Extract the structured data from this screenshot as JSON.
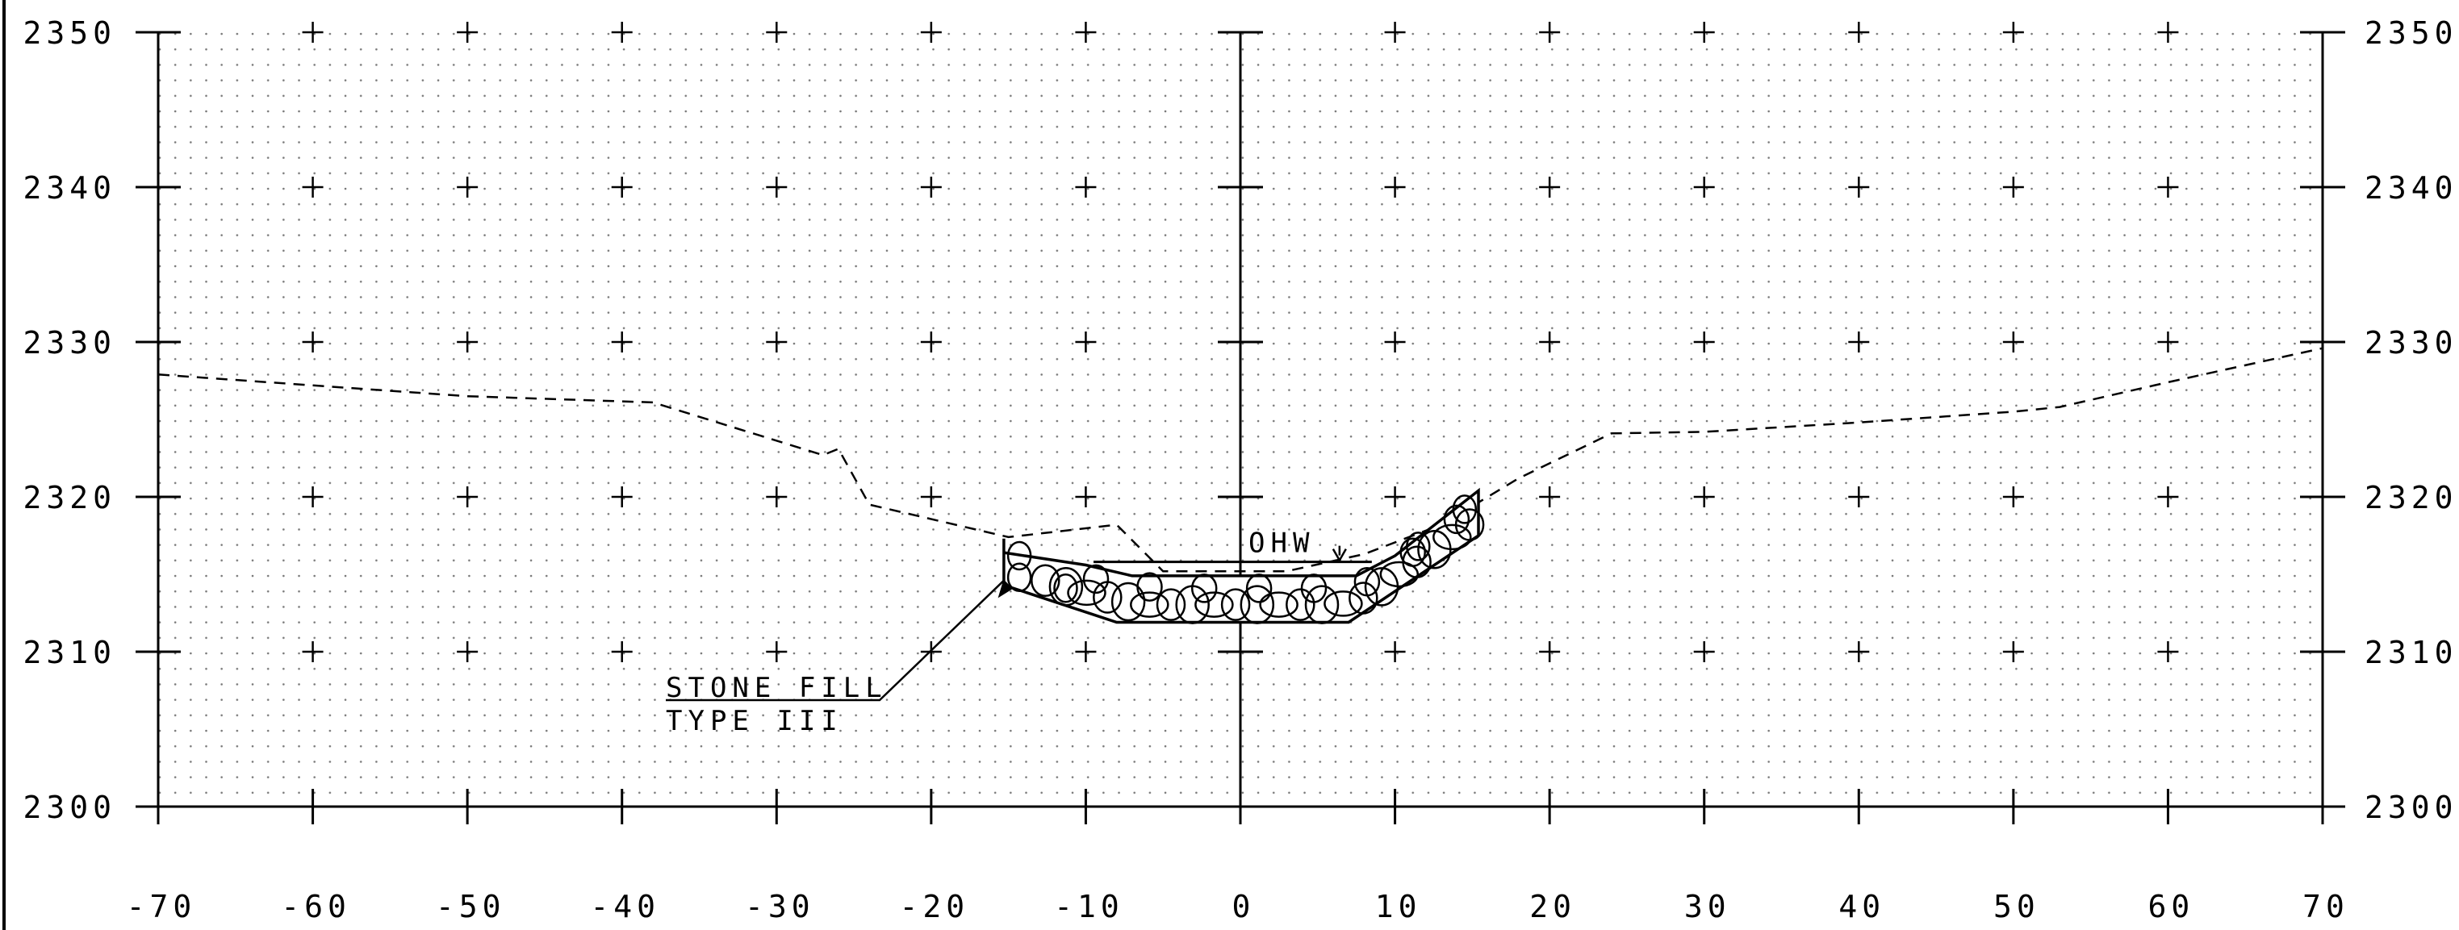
{
  "chart_data": {
    "type": "cross-section",
    "x_range": [
      -70,
      70
    ],
    "y_range": [
      2300,
      2350
    ],
    "x_ticks": [
      "-70",
      "-60",
      "-50",
      "-40",
      "-30",
      "-20",
      "-10",
      "0",
      "10",
      "20",
      "30",
      "40",
      "50",
      "60",
      "70"
    ],
    "y_ticks": [
      "2300",
      "2310",
      "2320",
      "2330",
      "2340",
      "2350"
    ],
    "grid": "dotted",
    "existing_ground": {
      "style": "dashed",
      "points": [
        [
          -70,
          2327.9
        ],
        [
          -60,
          2327.2
        ],
        [
          -50,
          2326.5
        ],
        [
          -38,
          2326.1
        ],
        [
          -27,
          2322.7
        ],
        [
          -26,
          2323.1
        ],
        [
          -24,
          2319.5
        ],
        [
          -15,
          2317.4
        ],
        [
          -8,
          2318.2
        ],
        [
          -5,
          2315.2
        ],
        [
          3,
          2315.2
        ],
        [
          8,
          2316.3
        ],
        [
          13,
          2318.2
        ],
        [
          18,
          2321.2
        ],
        [
          24,
          2324.1
        ],
        [
          30,
          2324.2
        ],
        [
          40,
          2324.8
        ],
        [
          50,
          2325.5
        ],
        [
          53,
          2325.8
        ],
        [
          60,
          2327.4
        ],
        [
          70,
          2329.6
        ]
      ]
    },
    "stone_fill": {
      "outer": [
        [
          -15.3,
          2317.3
        ],
        [
          -15.3,
          2314.3
        ],
        [
          -8,
          2311.9
        ],
        [
          7,
          2311.9
        ],
        [
          15.4,
          2317.5
        ],
        [
          15.4,
          2320.4
        ]
      ],
      "inner": [
        [
          -15.3,
          2316.4
        ],
        [
          -10,
          2315.6
        ],
        [
          -7,
          2314.9
        ],
        [
          7.5,
          2314.9
        ],
        [
          10,
          2316.2
        ],
        [
          15.4,
          2320.4
        ]
      ]
    },
    "ohw": {
      "label": "OHW",
      "x_from": -9.5,
      "x_to": 8.5,
      "elevation": 2315.8
    },
    "callout": {
      "line1": "STONE FILL",
      "line2": "TYPE III",
      "target": [
        -15.3,
        2314.6
      ]
    }
  }
}
